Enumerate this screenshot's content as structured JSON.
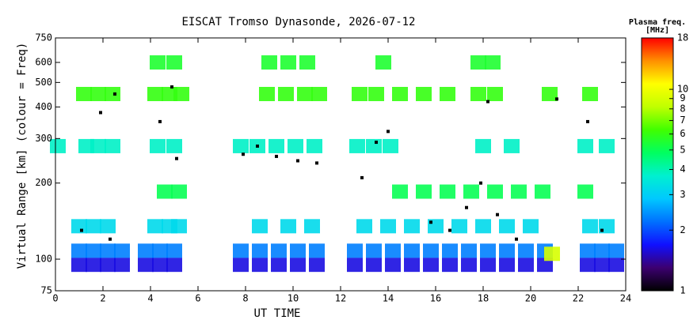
{
  "chart_data": {
    "type": "scatter",
    "title": "EISCAT Tromso Dynasonde, 2026-07-12",
    "xlabel": "UT TIME",
    "ylabel": "Virtual Range [km] (colour = Freq)",
    "colorbar_title": "Plasma freq.",
    "colorbar_unit": "[MHz]",
    "xlim": [
      0,
      24
    ],
    "xticks": [
      0,
      2,
      4,
      6,
      8,
      10,
      12,
      14,
      16,
      18,
      20,
      22,
      24
    ],
    "ylim": [
      75,
      750
    ],
    "yticks": [
      75,
      100,
      200,
      300,
      400,
      500,
      600,
      750
    ],
    "ylog": true,
    "clim": [
      1,
      18
    ],
    "cticks": [
      1,
      2,
      3,
      4,
      5,
      6,
      7,
      8,
      9,
      10,
      18
    ],
    "clog": true,
    "colormap": [
      "#000000",
      "#3c0070",
      "#1010ff",
      "#0070ff",
      "#00c8ff",
      "#00f0d0",
      "#00ff60",
      "#40ff00",
      "#c0ff00",
      "#ffff00",
      "#ff9000",
      "#ff0000"
    ],
    "x": [
      1.0,
      1.6,
      2.2,
      2.8,
      3.8,
      4.4,
      5.0,
      7.8,
      8.6,
      9.4,
      10.2,
      11.0,
      12.6,
      13.4,
      14.2,
      15.0,
      15.8,
      16.6,
      17.4,
      18.2,
      19.0,
      19.8,
      20.6,
      22.4,
      23.0,
      23.6,
      1.0,
      1.6,
      2.2,
      2.8,
      3.8,
      4.4,
      5.0,
      7.8,
      8.6,
      9.4,
      10.2,
      11.0,
      12.6,
      13.4,
      14.2,
      15.0,
      15.8,
      16.6,
      17.4,
      18.2,
      19.0,
      19.8,
      20.6,
      22.4,
      23.0,
      23.6,
      1.0,
      1.6,
      2.2,
      4.2,
      4.8,
      5.2,
      8.6,
      9.8,
      10.8,
      13.0,
      14.0,
      15.0,
      16.0,
      17.0,
      18.0,
      19.0,
      20.0,
      22.5,
      23.2,
      4.6,
      5.2,
      14.5,
      15.5,
      16.5,
      17.5,
      18.5,
      19.5,
      20.5,
      22.3,
      0.1,
      1.3,
      1.8,
      2.4,
      4.3,
      5.0,
      7.8,
      8.5,
      9.3,
      10.1,
      10.9,
      12.7,
      13.4,
      14.1,
      18.0,
      19.2,
      22.3,
      23.2,
      1.2,
      1.8,
      2.4,
      4.2,
      4.8,
      5.3,
      8.9,
      9.7,
      10.5,
      11.1,
      12.8,
      13.5,
      14.5,
      15.5,
      16.5,
      17.8,
      18.5,
      20.8,
      22.5,
      4.3,
      5.0,
      9.0,
      9.8,
      10.6,
      13.8,
      17.8,
      18.4,
      20.9
    ],
    "y": [
      95,
      95,
      95,
      95,
      95,
      95,
      95,
      95,
      95,
      95,
      95,
      95,
      95,
      95,
      95,
      95,
      95,
      95,
      95,
      95,
      95,
      95,
      95,
      95,
      95,
      95,
      108,
      108,
      108,
      108,
      108,
      108,
      108,
      108,
      108,
      108,
      108,
      108,
      108,
      108,
      108,
      108,
      108,
      108,
      108,
      108,
      108,
      108,
      108,
      108,
      108,
      108,
      135,
      135,
      135,
      135,
      135,
      135,
      135,
      135,
      135,
      135,
      135,
      135,
      135,
      135,
      135,
      135,
      135,
      135,
      135,
      185,
      185,
      185,
      185,
      185,
      185,
      185,
      185,
      185,
      185,
      280,
      280,
      280,
      280,
      280,
      280,
      280,
      280,
      280,
      280,
      280,
      280,
      280,
      280,
      280,
      280,
      280,
      280,
      450,
      450,
      450,
      450,
      450,
      450,
      450,
      450,
      450,
      450,
      450,
      450,
      450,
      450,
      450,
      450,
      450,
      450,
      450,
      600,
      600,
      600,
      600,
      600,
      600,
      600,
      600,
      105
    ],
    "values": [
      1.6,
      1.6,
      1.6,
      1.6,
      1.6,
      1.6,
      1.6,
      1.6,
      1.6,
      1.6,
      1.6,
      1.6,
      1.6,
      1.6,
      1.6,
      1.6,
      1.6,
      1.6,
      1.6,
      1.6,
      1.6,
      1.6,
      1.6,
      1.6,
      1.6,
      1.6,
      2.3,
      2.3,
      2.3,
      2.3,
      2.3,
      2.3,
      2.3,
      2.3,
      2.3,
      2.3,
      2.3,
      2.3,
      2.3,
      2.3,
      2.3,
      2.3,
      2.3,
      2.3,
      2.3,
      2.3,
      2.3,
      2.3,
      2.3,
      2.3,
      2.3,
      2.3,
      3.2,
      3.2,
      3.2,
      3.2,
      3.2,
      3.2,
      3.2,
      3.2,
      3.2,
      3.2,
      3.2,
      3.2,
      3.2,
      3.2,
      3.2,
      3.2,
      3.2,
      3.2,
      3.2,
      5,
      5,
      5,
      5,
      5,
      5,
      5,
      5,
      5,
      5,
      3.8,
      3.8,
      3.8,
      3.8,
      3.8,
      3.8,
      3.8,
      3.8,
      3.8,
      3.8,
      3.8,
      3.8,
      3.8,
      3.8,
      3.8,
      3.8,
      3.8,
      3.8,
      6,
      6,
      6,
      6,
      6,
      6,
      6,
      6,
      6,
      6,
      6,
      6,
      6,
      6,
      6,
      6,
      6,
      6,
      6,
      5.5,
      5.5,
      5.5,
      5.5,
      5.5,
      5.5,
      5.5,
      5.5,
      9
    ],
    "markers": {
      "color": "#000000",
      "x": [
        1.1,
        1.9,
        2.3,
        2.5,
        4.4,
        4.9,
        5.1,
        7.9,
        8.5,
        9.3,
        10.2,
        11.0,
        12.9,
        13.5,
        14.0,
        15.8,
        16.6,
        17.3,
        17.9,
        18.2,
        18.6,
        19.4,
        22.4,
        23.0,
        21.1
      ],
      "y": [
        130,
        380,
        120,
        450,
        350,
        480,
        250,
        260,
        280,
        255,
        245,
        240,
        210,
        290,
        320,
        140,
        130,
        160,
        200,
        420,
        150,
        120,
        350,
        130,
        430
      ]
    }
  }
}
